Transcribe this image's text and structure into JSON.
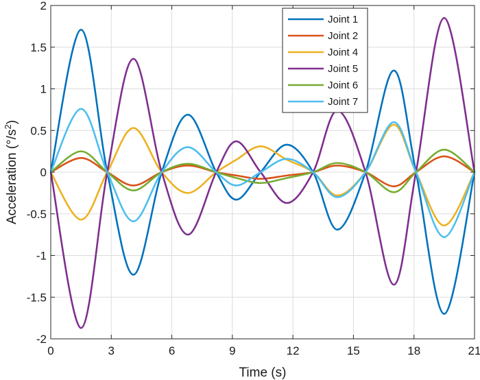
{
  "chart_data": {
    "type": "line",
    "title": "",
    "xlabel": "Time (s)",
    "ylabel_main": "Acceleration (°/s",
    "ylabel_sup": "2",
    "ylabel_close": ")",
    "xlim": [
      0,
      21
    ],
    "ylim": [
      -2,
      2
    ],
    "xticks": [
      0,
      3,
      6,
      9,
      12,
      15,
      18,
      21
    ],
    "yticks": [
      2,
      1.5,
      1,
      0.5,
      0,
      -0.5,
      -1,
      -1.5,
      -2
    ],
    "grid": true,
    "legend_position": "top-right",
    "x": [
      0,
      1.5,
      2.8,
      4.1,
      5.5,
      6.8,
      8.2,
      9.2,
      10.4,
      11.7,
      13.0,
      14.2,
      15.6,
      17.0,
      18.1,
      19.5,
      21
    ],
    "series": [
      {
        "name": "Joint 1",
        "color": "#0072BD",
        "values": [
          0,
          1.71,
          0,
          -1.23,
          0,
          0.69,
          0,
          -0.33,
          0,
          0.33,
          0,
          -0.69,
          0,
          1.22,
          0,
          -1.7,
          0
        ]
      },
      {
        "name": "Joint 2",
        "color": "#D95319",
        "values": [
          0,
          0.17,
          0,
          -0.16,
          0,
          0.08,
          0,
          -0.04,
          -0.08,
          -0.04,
          0,
          0.08,
          0,
          -0.17,
          0,
          0.19,
          0
        ]
      },
      {
        "name": "Joint 4",
        "color": "#EDB120",
        "values": [
          0,
          -0.57,
          0,
          0.53,
          0,
          -0.25,
          0,
          0.15,
          0.31,
          0.15,
          0,
          -0.28,
          0,
          0.57,
          0,
          -0.64,
          0
        ]
      },
      {
        "name": "Joint 5",
        "color": "#7E2F8E",
        "values": [
          0,
          -1.87,
          0,
          1.36,
          0,
          -0.75,
          0,
          0.37,
          0,
          -0.37,
          0,
          0.74,
          0,
          -1.35,
          0,
          1.85,
          0
        ]
      },
      {
        "name": "Joint 6",
        "color": "#77AC30",
        "values": [
          0,
          0.25,
          0,
          -0.22,
          0,
          0.1,
          0,
          -0.07,
          -0.13,
          -0.07,
          0,
          0.11,
          0,
          -0.24,
          0,
          0.27,
          0
        ]
      },
      {
        "name": "Joint 7",
        "color": "#4DBEEE",
        "values": [
          0,
          0.76,
          0,
          -0.59,
          0,
          0.3,
          0,
          -0.16,
          0,
          0.16,
          0,
          -0.3,
          0,
          0.6,
          0,
          -0.78,
          0
        ]
      }
    ]
  }
}
